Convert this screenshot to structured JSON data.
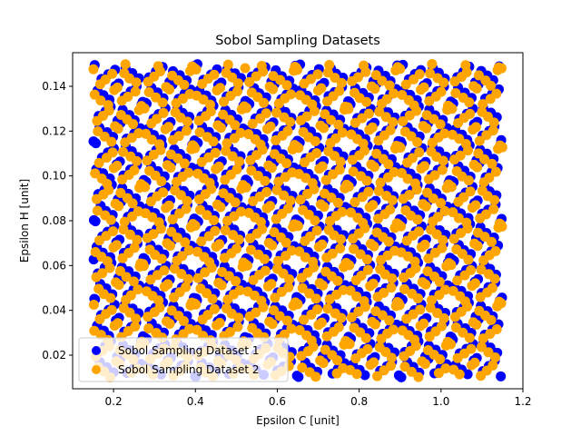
{
  "chart_data": {
    "type": "scatter",
    "title": "Sobol Sampling Datasets",
    "xlabel": "Epsilon C [unit]",
    "ylabel": "Epsilon H [unit]",
    "xlim": [
      0.1,
      1.2
    ],
    "ylim": [
      0.005,
      0.155
    ],
    "x_ticks": [
      "0.2",
      "0.4",
      "0.6",
      "0.8",
      "1.0",
      "1.2"
    ],
    "y_ticks": [
      "0.02",
      "0.04",
      "0.06",
      "0.08",
      "0.10",
      "0.12",
      "0.14"
    ],
    "grid": false,
    "legend_position": "lower-left",
    "series": [
      {
        "name": "Sobol Sampling Dataset 1",
        "color": "#0000ff",
        "x_range": [
          0.15,
          1.15
        ],
        "y_range": [
          0.01,
          0.15
        ],
        "count": 1024
      },
      {
        "name": "Sobol Sampling Dataset 2",
        "color": "#ffa500",
        "x_range": [
          0.15,
          1.15
        ],
        "y_range": [
          0.01,
          0.15
        ],
        "count": 1024
      }
    ]
  }
}
